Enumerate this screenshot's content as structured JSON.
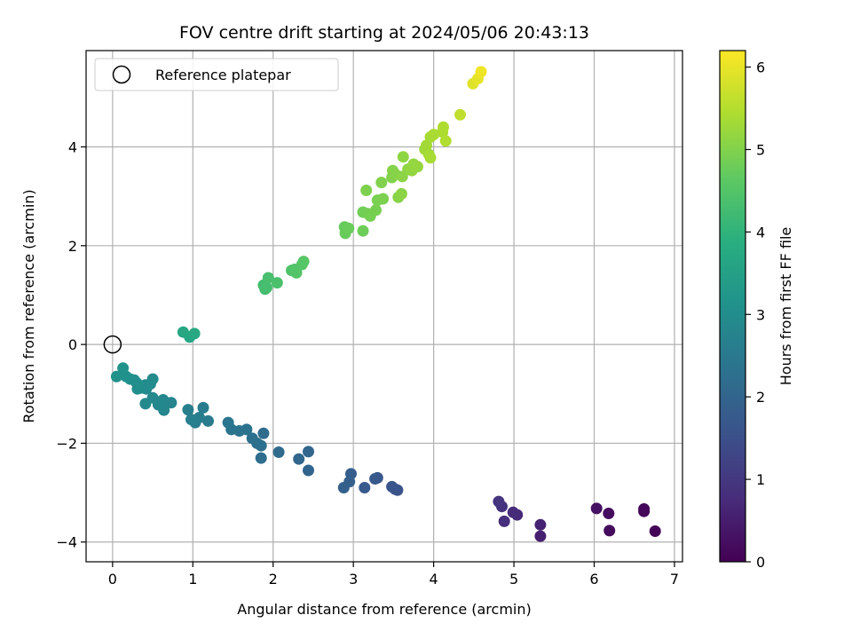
{
  "chart_data": {
    "type": "scatter",
    "title": "FOV centre drift starting at 2024/05/06 20:43:13",
    "xlabel": "Angular distance from reference (arcmin)",
    "ylabel": "Rotation from reference (arcmin)",
    "xlim": [
      -0.33,
      7.1
    ],
    "ylim": [
      -4.4,
      5.95
    ],
    "xticks": [
      0,
      1,
      2,
      3,
      4,
      5,
      6,
      7
    ],
    "yticks": [
      -4,
      -2,
      0,
      2,
      4
    ],
    "grid": true,
    "legend": {
      "placement": "top-left",
      "entries": [
        "Reference platepar"
      ]
    },
    "reference_point": {
      "x": 0,
      "y": 0,
      "label": "Reference platepar"
    },
    "colorbar": {
      "label": "Hours from first FF file",
      "range": [
        0,
        6.2
      ],
      "ticks": [
        0,
        1,
        2,
        3,
        4,
        5,
        6
      ],
      "colormap": "viridis"
    },
    "points": [
      [
        6.76,
        -3.78,
        0.05
      ],
      [
        6.62,
        -3.38,
        0.1
      ],
      [
        6.62,
        -3.33,
        0.13
      ],
      [
        6.19,
        -3.77,
        0.18
      ],
      [
        6.18,
        -3.42,
        0.22
      ],
      [
        6.03,
        -3.32,
        0.28
      ],
      [
        5.33,
        -3.88,
        0.55
      ],
      [
        5.33,
        -3.65,
        0.6
      ],
      [
        5.04,
        -3.45,
        0.72
      ],
      [
        4.99,
        -3.4,
        0.76
      ],
      [
        4.88,
        -3.58,
        0.82
      ],
      [
        4.85,
        -3.28,
        0.88
      ],
      [
        4.81,
        -3.18,
        0.92
      ],
      [
        3.55,
        -2.95,
        1.55
      ],
      [
        3.52,
        -2.93,
        1.6
      ],
      [
        3.48,
        -2.88,
        1.63
      ],
      [
        3.3,
        -2.7,
        1.7
      ],
      [
        3.27,
        -2.72,
        1.72
      ],
      [
        3.14,
        -2.9,
        1.78
      ],
      [
        2.97,
        -2.62,
        1.85
      ],
      [
        2.95,
        -2.78,
        1.88
      ],
      [
        2.88,
        -2.9,
        1.9
      ],
      [
        2.44,
        -2.55,
        2.0
      ],
      [
        2.44,
        -2.17,
        2.03
      ],
      [
        2.32,
        -2.32,
        2.06
      ],
      [
        2.07,
        -2.18,
        2.12
      ],
      [
        1.88,
        -1.8,
        2.18
      ],
      [
        1.85,
        -2.3,
        2.2
      ],
      [
        1.85,
        -2.05,
        2.22
      ],
      [
        1.8,
        -2.0,
        2.25
      ],
      [
        1.74,
        -1.9,
        2.28
      ],
      [
        1.67,
        -1.72,
        2.32
      ],
      [
        1.58,
        -1.75,
        2.35
      ],
      [
        1.48,
        -1.72,
        2.38
      ],
      [
        1.44,
        -1.58,
        2.4
      ],
      [
        1.19,
        -1.55,
        2.55
      ],
      [
        1.13,
        -1.28,
        2.58
      ],
      [
        1.08,
        -1.48,
        2.6
      ],
      [
        1.03,
        -1.58,
        2.62
      ],
      [
        0.98,
        -1.52,
        2.64
      ],
      [
        0.94,
        -1.32,
        2.66
      ],
      [
        0.73,
        -1.18,
        2.78
      ],
      [
        0.64,
        -1.33,
        2.82
      ],
      [
        0.63,
        -1.12,
        2.84
      ],
      [
        0.57,
        -1.22,
        2.86
      ],
      [
        0.5,
        -1.08,
        2.88
      ],
      [
        0.5,
        -0.7,
        2.92
      ],
      [
        0.47,
        -0.8,
        2.94
      ],
      [
        0.42,
        -0.9,
        2.96
      ],
      [
        0.41,
        -0.82,
        2.98
      ],
      [
        0.36,
        -0.88,
        3.0
      ],
      [
        0.31,
        -0.9,
        3.02
      ],
      [
        0.3,
        -0.78,
        3.04
      ],
      [
        0.27,
        -0.72,
        3.06
      ],
      [
        0.22,
        -0.7,
        3.08
      ],
      [
        0.17,
        -0.65,
        3.1
      ],
      [
        0.13,
        -0.48,
        3.12
      ],
      [
        0.05,
        -0.65,
        3.14
      ],
      [
        0.41,
        -1.2,
        2.9
      ],
      [
        0.88,
        0.25,
        3.65
      ],
      [
        0.96,
        0.15,
        3.7
      ],
      [
        1.02,
        0.22,
        3.72
      ],
      [
        1.88,
        1.2,
        4.28
      ],
      [
        1.9,
        1.12,
        4.3
      ],
      [
        1.92,
        1.15,
        4.32
      ],
      [
        1.94,
        1.35,
        4.34
      ],
      [
        2.05,
        1.25,
        4.38
      ],
      [
        2.23,
        1.5,
        4.45
      ],
      [
        2.27,
        1.52,
        4.48
      ],
      [
        2.29,
        1.45,
        4.5
      ],
      [
        2.36,
        1.62,
        4.53
      ],
      [
        2.38,
        1.68,
        4.55
      ],
      [
        2.89,
        2.38,
        4.72
      ],
      [
        2.9,
        2.25,
        4.74
      ],
      [
        2.94,
        2.35,
        4.76
      ],
      [
        3.12,
        2.3,
        4.8
      ],
      [
        3.12,
        2.68,
        4.84
      ],
      [
        3.18,
        2.65,
        4.86
      ],
      [
        3.21,
        2.6,
        4.88
      ],
      [
        3.28,
        2.72,
        4.9
      ],
      [
        3.3,
        2.92,
        4.92
      ],
      [
        3.37,
        2.95,
        4.94
      ],
      [
        3.16,
        3.12,
        4.96
      ],
      [
        3.35,
        3.28,
        4.98
      ],
      [
        3.48,
        3.38,
        5.0
      ],
      [
        3.49,
        3.52,
        5.02
      ],
      [
        3.52,
        3.45,
        5.04
      ],
      [
        3.56,
        2.98,
        5.06
      ],
      [
        3.6,
        3.05,
        5.08
      ],
      [
        3.61,
        3.4,
        5.1
      ],
      [
        3.62,
        3.8,
        5.12
      ],
      [
        3.68,
        3.55,
        5.14
      ],
      [
        3.73,
        3.52,
        5.16
      ],
      [
        3.75,
        3.65,
        5.18
      ],
      [
        3.8,
        3.6,
        5.2
      ],
      [
        3.89,
        3.95,
        5.3
      ],
      [
        3.91,
        4.03,
        5.32
      ],
      [
        3.94,
        3.85,
        5.34
      ],
      [
        3.96,
        4.2,
        5.36
      ],
      [
        3.96,
        3.78,
        5.38
      ],
      [
        4.0,
        4.25,
        5.4
      ],
      [
        4.11,
        4.3,
        5.42
      ],
      [
        4.12,
        4.4,
        5.44
      ],
      [
        4.15,
        4.12,
        5.46
      ],
      [
        4.33,
        4.65,
        5.6
      ],
      [
        4.49,
        5.28,
        5.9
      ],
      [
        4.55,
        5.38,
        5.98
      ],
      [
        4.59,
        5.52,
        6.05
      ]
    ]
  }
}
